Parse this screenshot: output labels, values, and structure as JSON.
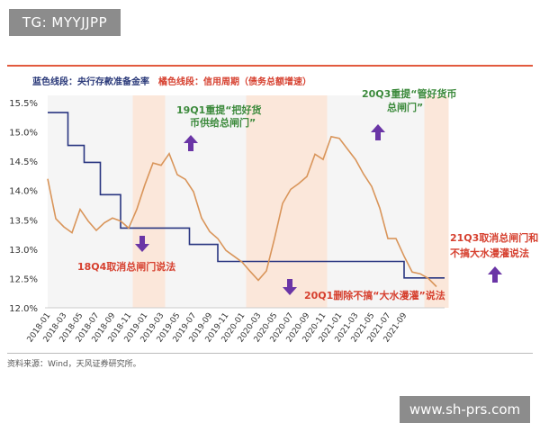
{
  "watermark_top": "TG: MYYJJPP",
  "watermark_bottom": "www.sh-prs.com",
  "source_note": "资料来源：Wind，天风证券研究所。",
  "colors": {
    "blue": "#283580",
    "orange": "#d9955a",
    "annotation_green": "#3c8a3c",
    "annotation_red": "#d6402f",
    "arrow_purple": "#6a35a6",
    "band": "#fbe7da"
  },
  "chart_data": {
    "type": "line",
    "legend": [
      "蓝色线段：央行存款准备金率",
      "橘色线段：信用周期（债务总额增速）"
    ],
    "yticks": [
      "15.5%",
      "15.0%",
      "14.5%",
      "14.0%",
      "13.5%",
      "13.0%",
      "12.5%",
      "12.0%"
    ],
    "ylim": [
      12.0,
      15.5
    ],
    "xticks": [
      "2018-01",
      "2018-03",
      "2018-05",
      "2018-07",
      "2018-09",
      "2018-11",
      "2019-01",
      "2019-03",
      "2019-05",
      "2019-07",
      "2019-09",
      "2019-11",
      "2020-01",
      "2020-03",
      "2020-05",
      "2020-07",
      "2020-09",
      "2020-11",
      "2021-01",
      "2021-03",
      "2021-05",
      "2021-07",
      "2021-09"
    ],
    "series": [
      {
        "name": "央行存款准备金率",
        "color": "#283580",
        "points": [
          [
            0,
            15.33
          ],
          [
            2.5,
            15.33
          ],
          [
            2.5,
            14.77
          ],
          [
            4.5,
            14.77
          ],
          [
            4.5,
            14.48
          ],
          [
            6.5,
            14.48
          ],
          [
            6.5,
            13.93
          ],
          [
            9,
            13.93
          ],
          [
            9,
            13.36
          ],
          [
            17.5,
            13.36
          ],
          [
            17.5,
            13.08
          ],
          [
            21,
            13.08
          ],
          [
            21,
            12.79
          ],
          [
            44,
            12.79
          ],
          [
            44,
            12.51
          ],
          [
            49,
            12.51
          ]
        ]
      },
      {
        "name": "信用周期（债务总额增速）",
        "color": "#d9955a",
        "points": [
          [
            0,
            14.2
          ],
          [
            1,
            13.52
          ],
          [
            2,
            13.38
          ],
          [
            3,
            13.28
          ],
          [
            4,
            13.68
          ],
          [
            5,
            13.48
          ],
          [
            6,
            13.32
          ],
          [
            7,
            13.45
          ],
          [
            8,
            13.53
          ],
          [
            9,
            13.48
          ],
          [
            10,
            13.36
          ],
          [
            11,
            13.68
          ],
          [
            12,
            14.1
          ],
          [
            13,
            14.47
          ],
          [
            14,
            14.43
          ],
          [
            15,
            14.63
          ],
          [
            16,
            14.27
          ],
          [
            17,
            14.19
          ],
          [
            18,
            13.98
          ],
          [
            19,
            13.53
          ],
          [
            20,
            13.3
          ],
          [
            21,
            13.18
          ],
          [
            22,
            12.98
          ],
          [
            23,
            12.88
          ],
          [
            24,
            12.78
          ],
          [
            25,
            12.62
          ],
          [
            26,
            12.47
          ],
          [
            27,
            12.63
          ],
          [
            28,
            13.18
          ],
          [
            29,
            13.78
          ],
          [
            30,
            14.02
          ],
          [
            31,
            14.12
          ],
          [
            32,
            14.24
          ],
          [
            33,
            14.62
          ],
          [
            34,
            14.53
          ],
          [
            35,
            14.92
          ],
          [
            36,
            14.89
          ],
          [
            37,
            14.71
          ],
          [
            38,
            14.53
          ],
          [
            39,
            14.28
          ],
          [
            40,
            14.07
          ],
          [
            41,
            13.7
          ],
          [
            42,
            13.18
          ],
          [
            43,
            13.18
          ],
          [
            44,
            12.88
          ],
          [
            45,
            12.61
          ],
          [
            46,
            12.58
          ],
          [
            47,
            12.5
          ],
          [
            48,
            12.36
          ]
        ]
      }
    ],
    "shaded_bands": [
      [
        10.5,
        14.5
      ],
      [
        24.5,
        34.5
      ],
      [
        46.5,
        49.5
      ]
    ],
    "annotations": [
      {
        "text_lines": [
          "18Q4取消总闸门说法"
        ],
        "color": "red",
        "arrow": "down"
      },
      {
        "text_lines": [
          "19Q1重提“把好货",
          "币供给总闸门”"
        ],
        "color": "green",
        "arrow": "up"
      },
      {
        "text_lines": [
          "20Q1删除不搞“大水漫灌”说法"
        ],
        "color": "red",
        "arrow": "down"
      },
      {
        "text_lines": [
          "20Q3重提“管好货币",
          "总闸门”"
        ],
        "color": "green",
        "arrow": "up"
      },
      {
        "text_lines": [
          "21Q3取消总闸门和",
          "不搞大水漫灌说法"
        ],
        "color": "red",
        "arrow": "up"
      }
    ]
  }
}
